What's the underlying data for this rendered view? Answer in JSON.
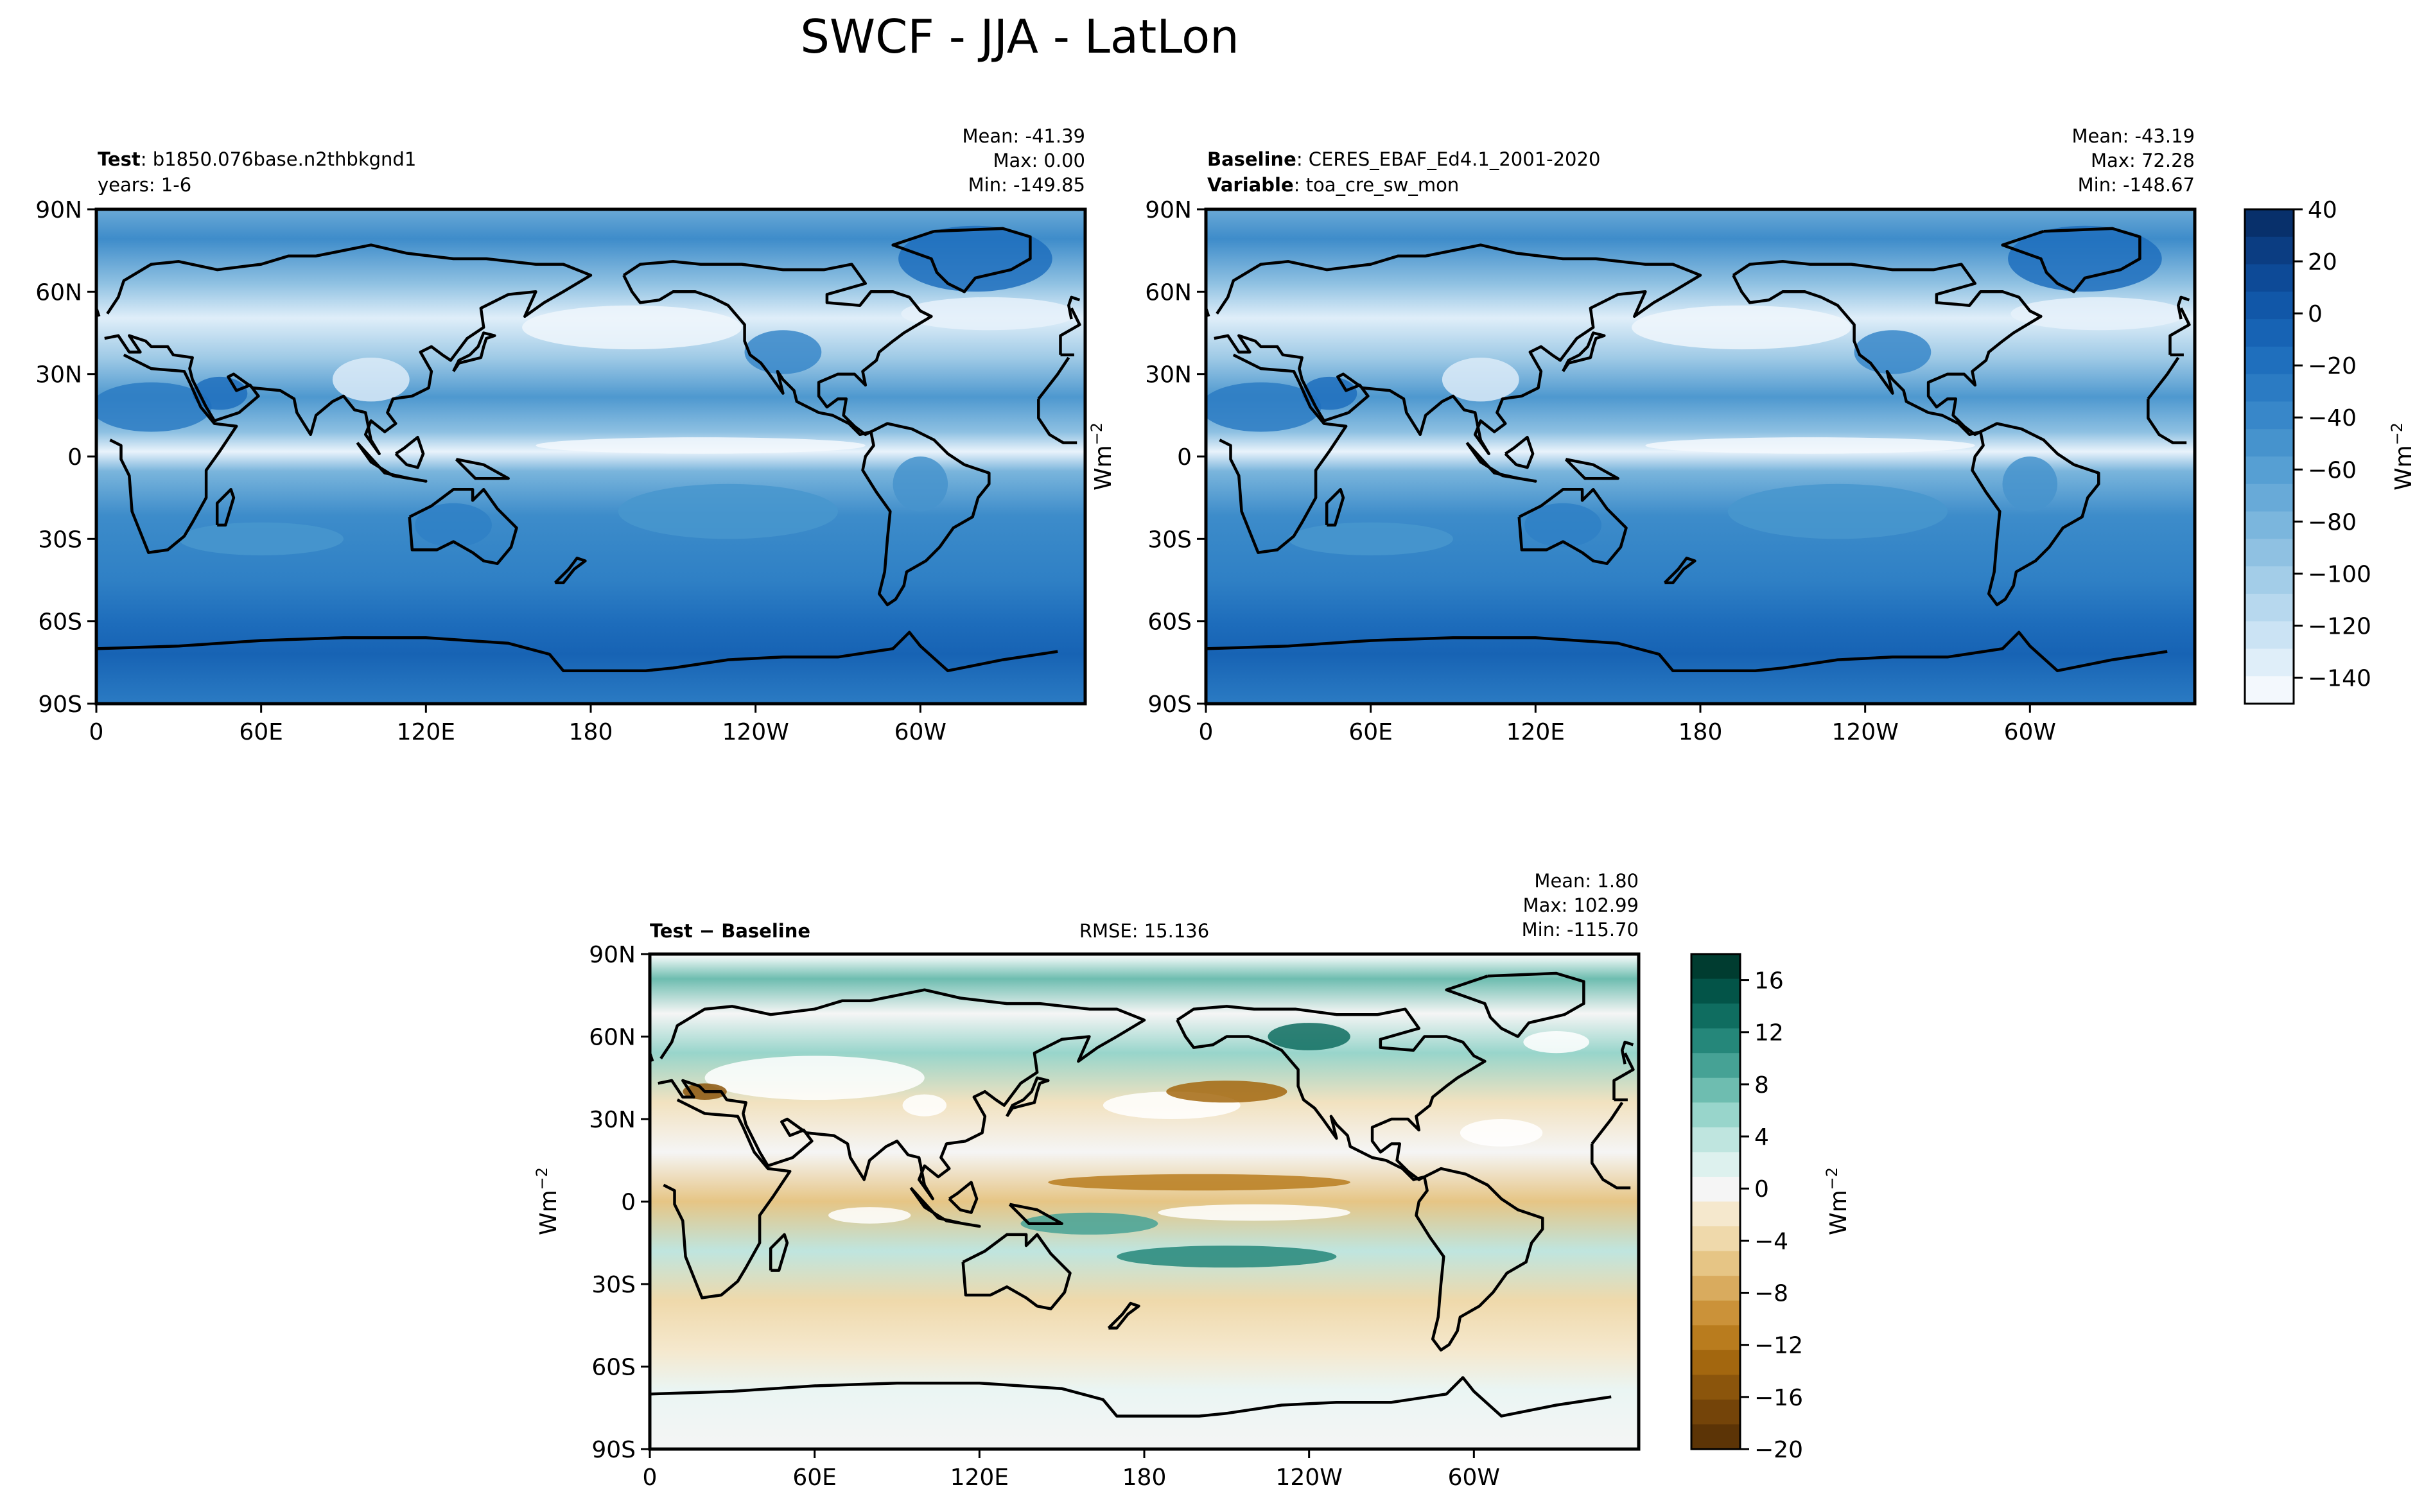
{
  "title": "SWCF - JJA - LatLon",
  "colors": {
    "frame": "#000000",
    "coast": "#000000",
    "land_plain": "#ffffff",
    "blues": [
      "#08306b",
      "#0b3d82",
      "#0d4a97",
      "#1157a8",
      "#1763b4",
      "#1f6fbd",
      "#2b7bc3",
      "#3887c9",
      "#4693cd",
      "#569fd3",
      "#68aad8",
      "#7bb6dd",
      "#8fc1e2",
      "#a3cde8",
      "#b7d8ee",
      "#cbe3f4",
      "#dfeef9",
      "#f3f8fd"
    ],
    "brbg": [
      "#5c3406",
      "#744409",
      "#8b550c",
      "#a3670f",
      "#b97c1e",
      "#cb9239",
      "#d9ab5e",
      "#e6c585",
      "#efd9ab",
      "#f5e8cd",
      "#f5f5f5",
      "#ddf1ee",
      "#bfe5df",
      "#98d5cb",
      "#6ebdb0",
      "#46a295",
      "#25877a",
      "#0f6d60",
      "#035448",
      "#003c30"
    ]
  },
  "chart_data": [
    {
      "type": "heatmap",
      "panel": "test",
      "header_bold_1": "Test",
      "header_text_1": ": b1850.076base.n2thbkgnd1",
      "header_text_2": "years: 1-6",
      "stats": {
        "mean": "Mean: -41.39",
        "max": "Max:  0.00",
        "min": "Min: -149.85"
      },
      "xticks": [
        "0",
        "60E",
        "120E",
        "180",
        "120W",
        "60W"
      ],
      "yticks": [
        "90N",
        "60N",
        "30N",
        "0",
        "30S",
        "60S",
        "90S"
      ],
      "xlim": [
        0,
        360
      ],
      "ylim": [
        -90,
        90
      ]
    },
    {
      "type": "heatmap",
      "panel": "baseline",
      "header_bold_1": "Baseline",
      "header_text_1": ": CERES_EBAF_Ed4.1_2001-2020",
      "header_bold_2": "Variable",
      "header_text_2": ": toa_cre_sw_mon",
      "stats": {
        "mean": "Mean: -43.19",
        "max": "Max: 72.28",
        "min": "Min: -148.67"
      },
      "xticks": [
        "0",
        "60E",
        "120E",
        "180",
        "120W",
        "60W"
      ],
      "yticks": [
        "90N",
        "60N",
        "30N",
        "0",
        "30S",
        "60S",
        "90S"
      ],
      "xlim": [
        0,
        360
      ],
      "ylim": [
        -90,
        90
      ],
      "ylabel": "Wm",
      "ylabel_sup": "−2"
    },
    {
      "type": "heatmap",
      "panel": "difference",
      "header_bold_1": "Test − Baseline",
      "rmse": "RMSE: 15.136",
      "stats": {
        "mean": "Mean:  1.80",
        "max": "Max: 102.99",
        "min": "Min: -115.70"
      },
      "xticks": [
        "0",
        "60E",
        "120E",
        "180",
        "120W",
        "60W"
      ],
      "yticks": [
        "90N",
        "60N",
        "30N",
        "0",
        "30S",
        "60S",
        "90S"
      ],
      "xlim": [
        0,
        360
      ],
      "ylim": [
        -90,
        90
      ],
      "ylabel": "Wm",
      "ylabel_sup": "−2"
    }
  ],
  "colorbar_main": {
    "min": -150,
    "max": 40,
    "ticks": [
      40,
      20,
      0,
      -20,
      -40,
      -60,
      -80,
      -100,
      -120,
      -140
    ],
    "tick_labels": [
      "40",
      "20",
      "0",
      "−20",
      "−40",
      "−60",
      "−80",
      "−100",
      "−120",
      "−140"
    ],
    "label": "Wm",
    "label_sup": "−2"
  },
  "colorbar_diff": {
    "min": -20,
    "max": 18,
    "ticks": [
      16,
      12,
      8,
      4,
      0,
      -4,
      -8,
      -12,
      -16,
      -20
    ],
    "tick_labels": [
      "16",
      "12",
      "8",
      "4",
      "0",
      "−4",
      "−8",
      "−12",
      "−16",
      "−20"
    ],
    "label": "Wm",
    "label_sup": "−2"
  }
}
